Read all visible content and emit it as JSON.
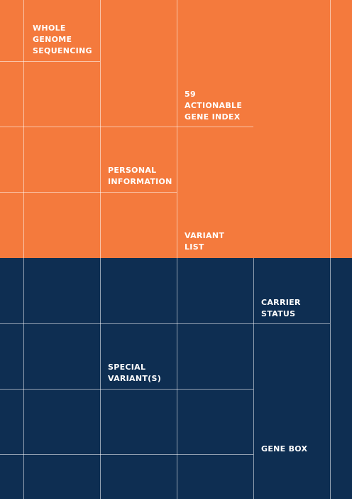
{
  "colors": {
    "top_band": "#F47A3D",
    "bottom_band": "#0E2E52",
    "text": "#FFFFFF",
    "grid_line": "#FFFFFF"
  },
  "labels": {
    "whole_genome_sequencing": "WHOLE\nGENOME\nSEQUENCING",
    "actionable_gene_index": "59\nACTIONABLE\nGENE INDEX",
    "personal_information": "PERSONAL\nINFORMATION",
    "variant_list": "VARIANT\nLIST",
    "carrier_status": "CARRIER\nSTATUS",
    "special_variants": "SPECIAL\nVARIANT(S)",
    "gene_box": "GENE BOX"
  }
}
